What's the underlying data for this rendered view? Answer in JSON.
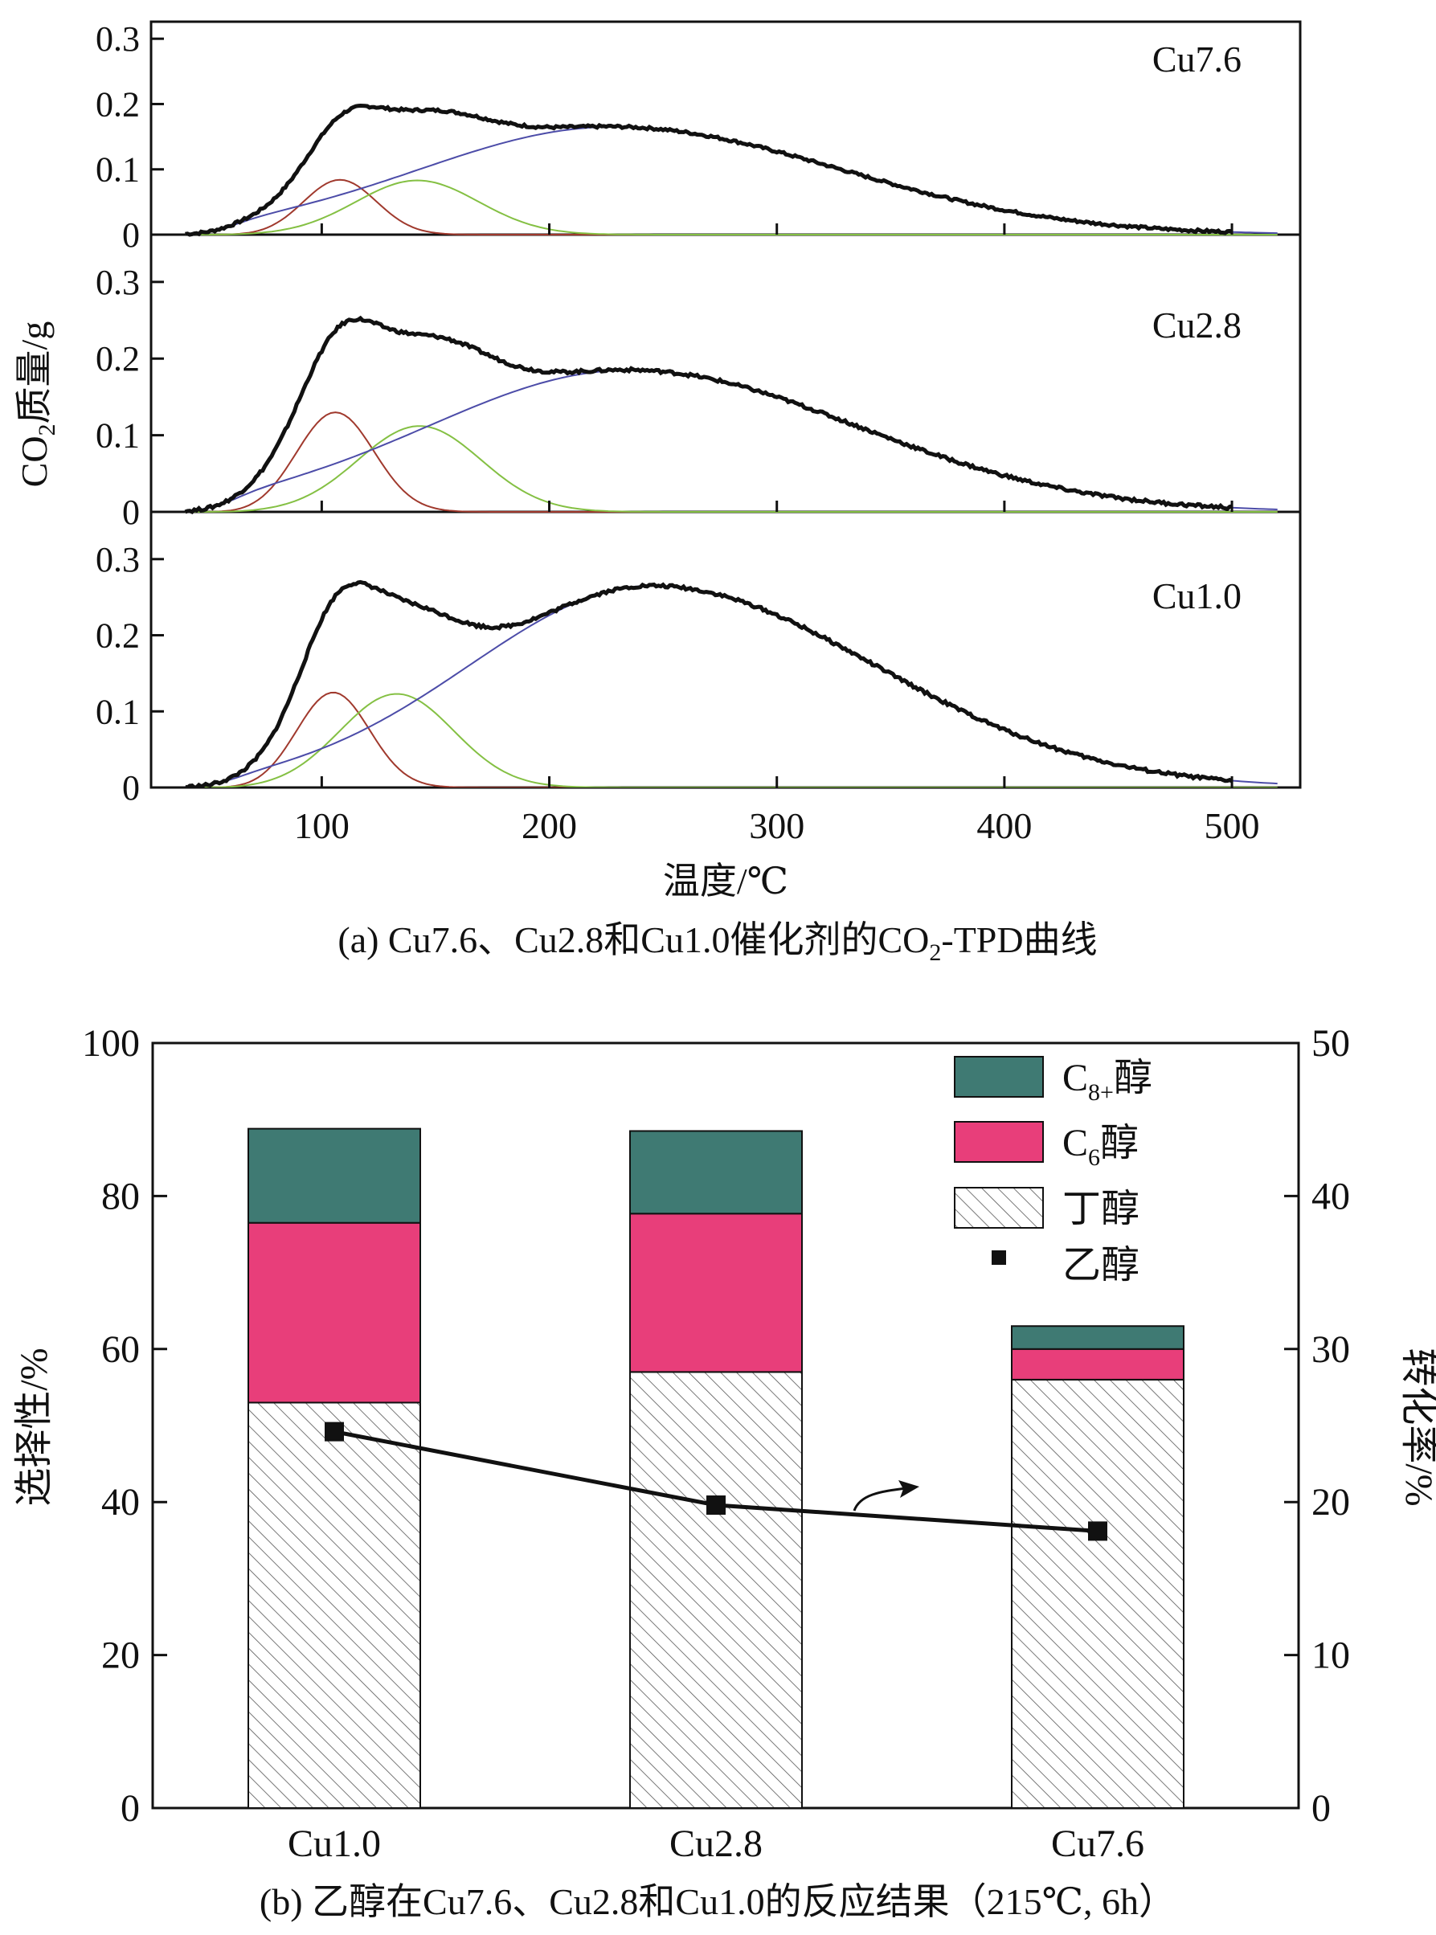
{
  "figure_a": {
    "caption_pre": "(a) Cu7.6、Cu2.8和Cu1.0催化剂的CO",
    "caption_sub": "2",
    "caption_post": "-TPD曲线",
    "ylabel_pre": "CO",
    "ylabel_sub": "2",
    "ylabel_post": "质量/g",
    "xlabel": "温度/℃"
  },
  "figure_b": {
    "caption": "(b) 乙醇在Cu7.6、Cu2.8和Cu1.0的反应结果（215℃, 6h）",
    "ylabel_left": "选择性/%",
    "ylabel_right": "转化率/%",
    "legend": {
      "c8_pre": "C",
      "c8_sub": "8+",
      "c8_post": "醇",
      "c6_pre": "C",
      "c6_sub": "6",
      "c6_post": "醇",
      "butanol": "丁醇",
      "ethanol": "乙醇"
    }
  },
  "chart_data": [
    {
      "type": "line",
      "title": "(a) Cu7.6、Cu2.8和Cu1.0催化剂的CO2-TPD曲线",
      "xlabel": "温度/℃",
      "ylabel": "CO2质量/g",
      "xlim": [
        25,
        530
      ],
      "ylim": [
        0,
        0.3
      ],
      "xticks": [
        "100",
        "200",
        "300",
        "400",
        "500"
      ],
      "yticks": [
        "0",
        "0.1",
        "0.2",
        "0.3"
      ],
      "panels": [
        {
          "label": "Cu7.6",
          "components": [
            {
              "name": "peak1",
              "color": "#a0392d",
              "center": 108,
              "height": 0.084,
              "width": 16
            },
            {
              "name": "peak2",
              "color": "#84c043",
              "center": 142,
              "height": 0.083,
              "width": 27
            },
            {
              "name": "peak3",
              "color": "#4c4ca8",
              "center": 228,
              "height": 0.165,
              "left_width": 85,
              "right_width": 100
            }
          ],
          "total": {
            "color": "#111111"
          }
        },
        {
          "label": "Cu2.8",
          "components": [
            {
              "name": "peak1",
              "color": "#a0392d",
              "center": 106,
              "height": 0.13,
              "width": 17
            },
            {
              "name": "peak2",
              "color": "#84c043",
              "center": 143,
              "height": 0.112,
              "width": 27
            },
            {
              "name": "peak3",
              "color": "#4c4ca8",
              "center": 235,
              "height": 0.185,
              "left_width": 88,
              "right_width": 100
            }
          ],
          "total": {
            "color": "#111111"
          }
        },
        {
          "label": "Cu1.0",
          "components": [
            {
              "name": "peak1",
              "color": "#a0392d",
              "center": 105,
              "height": 0.125,
              "width": 16
            },
            {
              "name": "peak2",
              "color": "#84c043",
              "center": 133,
              "height": 0.123,
              "width": 25
            },
            {
              "name": "peak3",
              "color": "#4c4ca8",
              "center": 245,
              "height": 0.265,
              "left_width": 80,
              "right_width": 98
            }
          ],
          "total": {
            "color": "#111111"
          }
        }
      ]
    },
    {
      "type": "bar",
      "title": "(b) 乙醇在Cu7.6、Cu2.8和Cu1.0的反应结果（215℃, 6h）",
      "categories": [
        "Cu1.0",
        "Cu2.8",
        "Cu7.6"
      ],
      "ylabel": "选择性/%",
      "ylim": [
        0,
        100
      ],
      "yticks": [
        "0",
        "20",
        "40",
        "60",
        "80",
        "100"
      ],
      "y2label": "转化率/%",
      "y2lim": [
        0,
        50
      ],
      "y2ticks": [
        "0",
        "10",
        "20",
        "30",
        "40",
        "50"
      ],
      "stacked": true,
      "series": [
        {
          "name": "丁醇",
          "values": [
            53,
            57,
            56
          ],
          "color": "#ffffff",
          "pattern": "hatch"
        },
        {
          "name": "C6醇",
          "values": [
            23.5,
            20.7,
            4
          ],
          "color": "#e83e7a"
        },
        {
          "name": "C8+醇",
          "values": [
            12.3,
            10.8,
            3
          ],
          "color": "#3f7a73"
        }
      ],
      "line_series": {
        "name": "乙醇",
        "axis": "right",
        "values": [
          24.6,
          19.8,
          18.1
        ],
        "color": "#111111"
      }
    }
  ]
}
